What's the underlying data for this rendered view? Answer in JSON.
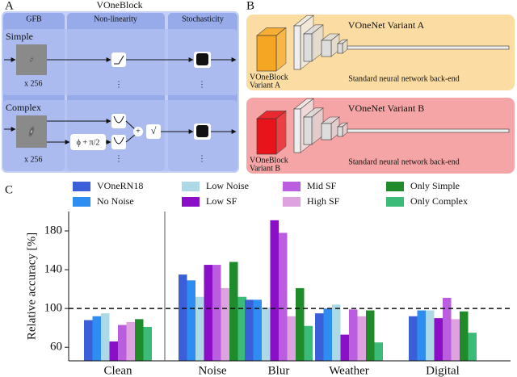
{
  "panel_labels": [
    "A",
    "B",
    "C"
  ],
  "panel_a": {
    "title": "VOneBlock",
    "columns": [
      "GFB",
      "Non-linearity",
      "Stochasticity"
    ],
    "rows": [
      {
        "label": "Simple",
        "count": "x 256"
      },
      {
        "label": "Complex",
        "count": "x 256"
      }
    ],
    "phase_shift": "ϕ + π/2",
    "sum": "+",
    "root": "√",
    "ellipsis": "⋮"
  },
  "panel_b": {
    "variants": [
      {
        "title": "VOneNet Variant A",
        "block": [
          "VOneBlock",
          "Variant A"
        ],
        "backend": "Standard neural network back-end",
        "color": "#f5a623",
        "bg": "#fbdca3"
      },
      {
        "title": "VOneNet Variant B",
        "block": [
          "VOneBlock",
          "Variant B"
        ],
        "backend": "Standard neural network back-end",
        "color": "#e8141c",
        "bg": "#f5a5a5"
      }
    ]
  },
  "chart_data": {
    "type": "bar",
    "ylabel": "Relative accuracy [%]",
    "categories": [
      "Clean",
      "Noise",
      "Blur",
      "Weather",
      "Digital"
    ],
    "series": [
      {
        "name": "VOneRN18",
        "color": "#3b5fd8",
        "values": [
          88,
          135,
          109,
          95,
          92
        ]
      },
      {
        "name": "No Noise",
        "color": "#2e8df0",
        "values": [
          92,
          129,
          109,
          100,
          98
        ]
      },
      {
        "name": "Low Noise",
        "color": "#add8e6",
        "values": [
          95,
          112,
          101,
          104,
          98
        ]
      },
      {
        "name": "Low SF",
        "color": "#8a0fc6",
        "values": [
          66,
          145,
          191,
          73,
          90
        ]
      },
      {
        "name": "Mid SF",
        "color": "#ba5ddf",
        "values": [
          83,
          145,
          178,
          99,
          111
        ]
      },
      {
        "name": "High SF",
        "color": "#dda2df",
        "values": [
          86,
          121,
          92,
          92,
          89
        ]
      },
      {
        "name": "Only Simple",
        "color": "#1f8b2b",
        "values": [
          89,
          148,
          121,
          98,
          97
        ]
      },
      {
        "name": "Only Complex",
        "color": "#3cba78",
        "values": [
          81,
          112,
          82,
          65,
          75
        ]
      }
    ],
    "ylim": [
      46,
      200
    ],
    "yticks": [
      60,
      100,
      140,
      180
    ],
    "reference_line": 100
  }
}
